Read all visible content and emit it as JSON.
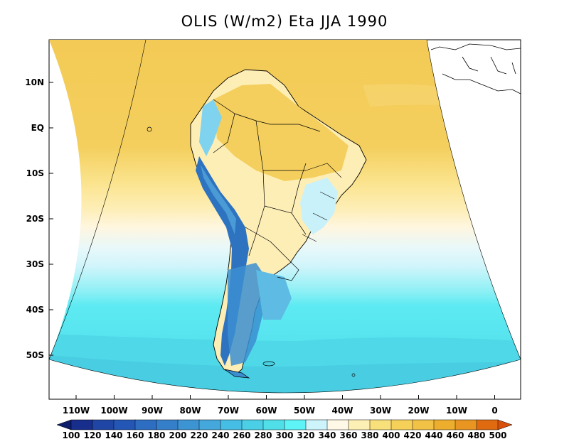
{
  "title": "OLIS (W/m2) Eta JJA 1990",
  "lat_ticks": [
    "10N",
    "EQ",
    "10S",
    "20S",
    "30S",
    "40S",
    "50S"
  ],
  "lon_ticks": [
    "110W",
    "100W",
    "90W",
    "80W",
    "70W",
    "60W",
    "50W",
    "40W",
    "30W",
    "20W",
    "10W",
    "0"
  ],
  "colorbar": {
    "levels": [
      "100",
      "120",
      "140",
      "160",
      "180",
      "200",
      "220",
      "240",
      "260",
      "280",
      "300",
      "320",
      "340",
      "360",
      "380",
      "400",
      "420",
      "440",
      "460",
      "480",
      "500"
    ],
    "colors": [
      "#0d1d6e",
      "#182e8c",
      "#1f46a5",
      "#2457b5",
      "#2d6ec2",
      "#357fca",
      "#3d94d3",
      "#44a8dc",
      "#46bde4",
      "#4bcfe6",
      "#50dfe9",
      "#5ef3f7",
      "#cdf4fb",
      "#fff8e6",
      "#fdf0b5",
      "#f8e07a",
      "#f5d15a",
      "#f1c246",
      "#edae2e",
      "#e89522",
      "#e06a10",
      "#d9500d"
    ]
  },
  "map_colors": {
    "ocean_north": "#f5cf5c",
    "ocean_mid": "#fde99a",
    "ocean_pale": "#fff5dc",
    "ocean_cyan_pale": "#d3f6fb",
    "ocean_south": "#59eaf2",
    "ocean_deep_south": "#4ed6e6",
    "andes": "#2e73bf",
    "land_light": "#f7e3a6"
  }
}
